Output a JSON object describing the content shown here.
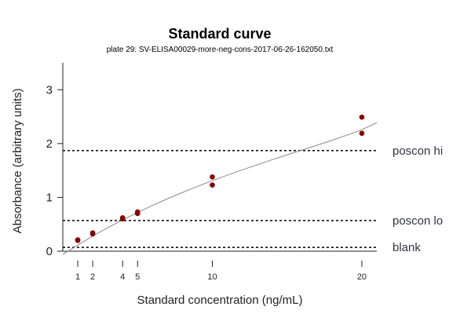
{
  "chart_data": {
    "type": "scatter",
    "title": "Standard curve",
    "subtitle": "plate 29: SV-ELISA00029-more-neg-cons-2017-06-26-162050.txt",
    "xlabel": "Standard concentration (ng/mL)",
    "ylabel": "Absorbance (arbitrary units)",
    "xlim": [
      0,
      21
    ],
    "ylim": [
      0,
      3.5
    ],
    "x_ticks": [
      1,
      2,
      4,
      5,
      10,
      20
    ],
    "y_ticks": [
      0,
      1,
      2,
      3
    ],
    "grid": false,
    "colors": {
      "points": "#8b0000",
      "fit": "#888888",
      "reference": "#111111",
      "reference_label": "#333344"
    },
    "points": [
      {
        "x": 1,
        "y": 0.2
      },
      {
        "x": 1,
        "y": 0.21
      },
      {
        "x": 2,
        "y": 0.32
      },
      {
        "x": 2,
        "y": 0.34
      },
      {
        "x": 4,
        "y": 0.6
      },
      {
        "x": 4,
        "y": 0.62
      },
      {
        "x": 5,
        "y": 0.7
      },
      {
        "x": 5,
        "y": 0.73
      },
      {
        "x": 10,
        "y": 1.23
      },
      {
        "x": 10,
        "y": 1.38
      },
      {
        "x": 20,
        "y": 2.19
      },
      {
        "x": 20,
        "y": 2.49
      }
    ],
    "fit": {
      "x": [
        0,
        2,
        4,
        6,
        8,
        10,
        12,
        14,
        16,
        18,
        20,
        21
      ],
      "y": [
        -0.06,
        0.28,
        0.58,
        0.85,
        1.09,
        1.31,
        1.51,
        1.7,
        1.88,
        2.06,
        2.26,
        2.39
      ]
    },
    "reference_lines": [
      {
        "label": "poscon hi",
        "y": 1.87
      },
      {
        "label": "poscon lo",
        "y": 0.57
      },
      {
        "label": "blank",
        "y": 0.07
      }
    ]
  }
}
